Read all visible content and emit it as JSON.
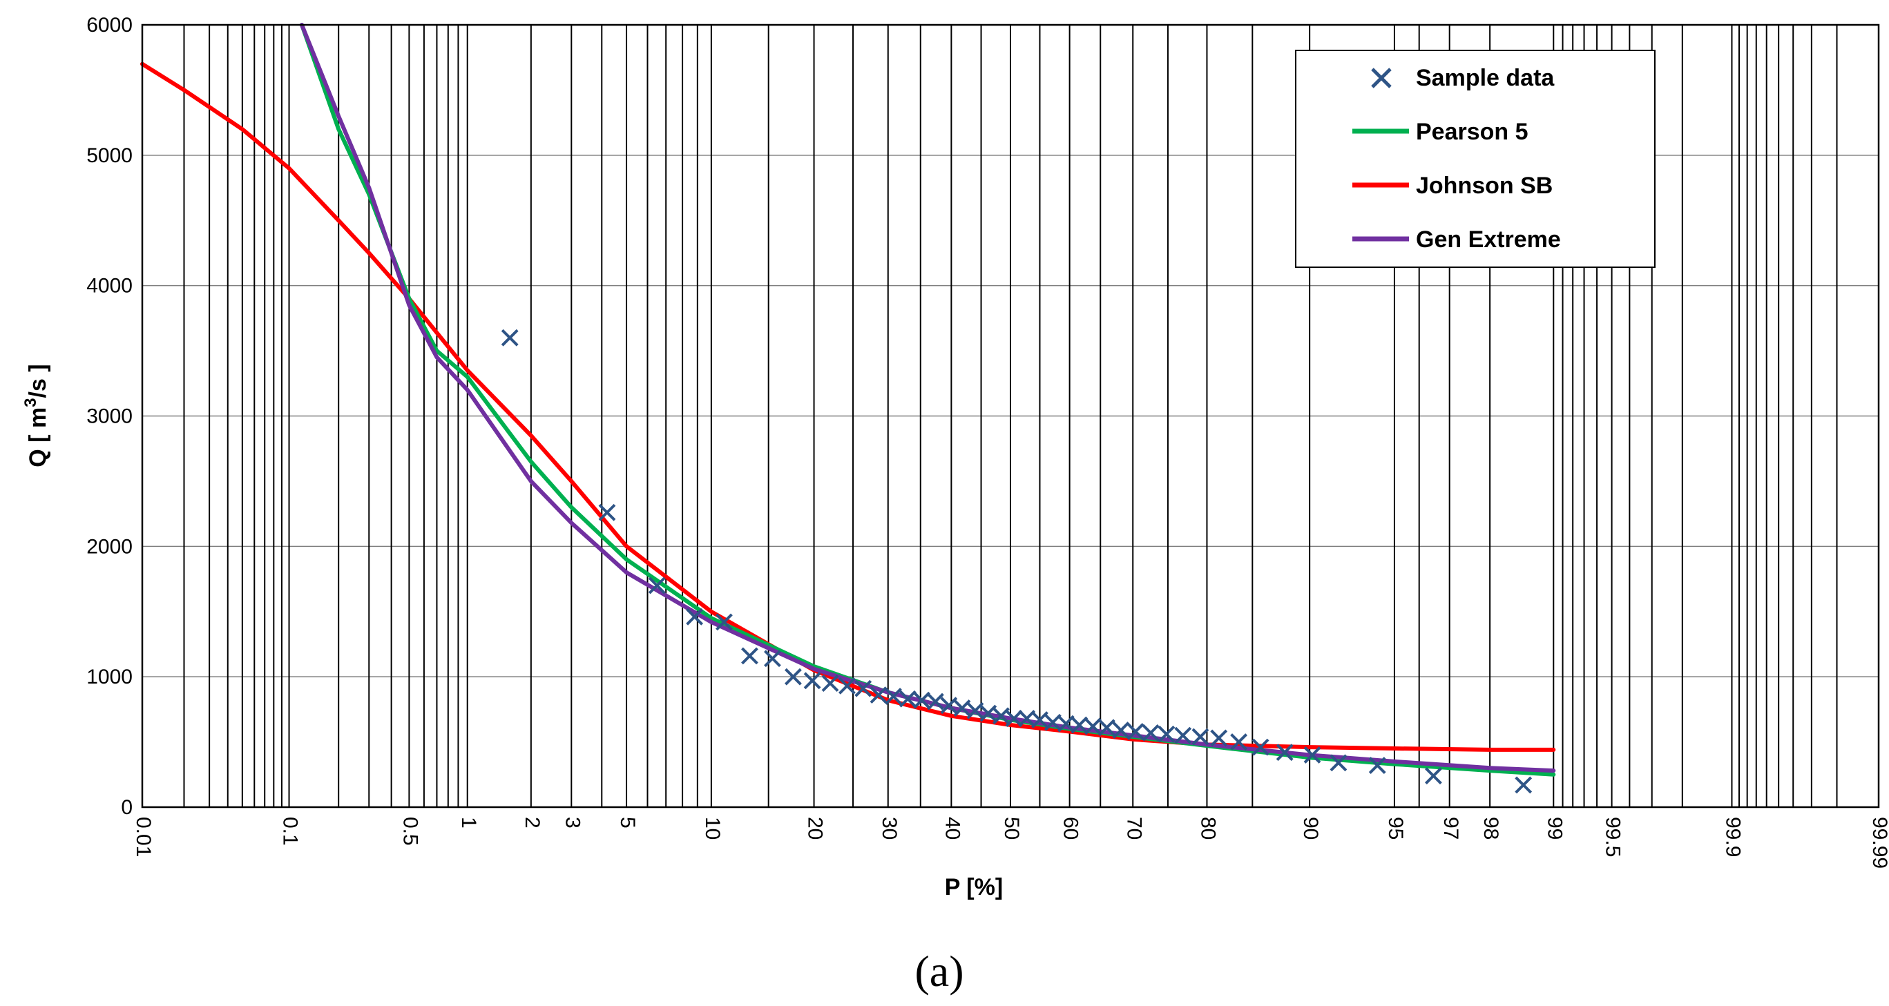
{
  "chart_data": {
    "type": "line",
    "caption": "(a)",
    "xlabel": "P [%]",
    "ylabel_main": "Q [ m",
    "ylabel_sup": "3",
    "ylabel_end": "/s ]",
    "x_scale": "normal-probability",
    "xlim": [
      0.01,
      99.99
    ],
    "ylim": [
      0,
      6000
    ],
    "grid": true,
    "legend_position": "top-right",
    "y_ticks": [
      0,
      1000,
      2000,
      3000,
      4000,
      5000,
      6000
    ],
    "x_tick_labels": [
      "0.01",
      "0.1",
      "0.5",
      "1",
      "2",
      "3",
      "5",
      "10",
      "20",
      "30",
      "40",
      "50",
      "60",
      "70",
      "80",
      "90",
      "95",
      "97",
      "98",
      "99",
      "99.5",
      "99.9",
      "99.99"
    ],
    "x_gridlines": [
      0.02,
      0.03,
      0.04,
      0.05,
      0.06,
      0.07,
      0.08,
      0.09,
      0.1,
      0.2,
      0.3,
      0.4,
      0.5,
      0.6,
      0.7,
      0.8,
      0.9,
      1,
      2,
      3,
      4,
      5,
      6,
      7,
      8,
      9,
      10,
      15,
      20,
      25,
      30,
      35,
      40,
      45,
      50,
      55,
      60,
      65,
      70,
      75,
      80,
      85,
      90,
      95,
      96,
      97,
      98,
      99,
      99.1,
      99.2,
      99.3,
      99.4,
      99.5,
      99.6,
      99.7,
      99.8,
      99.9,
      99.91,
      99.92,
      99.93,
      99.94,
      99.95,
      99.96,
      99.97,
      99.98,
      99.99
    ],
    "series": [
      {
        "name": "Sample data",
        "kind": "scatter",
        "color": "#2e5486",
        "points": [
          [
            1.6,
            3600
          ],
          [
            4.2,
            2260
          ],
          [
            6.5,
            1700
          ],
          [
            8.8,
            1460
          ],
          [
            11.0,
            1420
          ],
          [
            13.2,
            1160
          ],
          [
            15.4,
            1140
          ],
          [
            17.6,
            1000
          ],
          [
            19.8,
            970
          ],
          [
            22.0,
            950
          ],
          [
            24.2,
            930
          ],
          [
            26.4,
            910
          ],
          [
            28.6,
            860
          ],
          [
            30.8,
            850
          ],
          [
            33.0,
            830
          ],
          [
            35.2,
            820
          ],
          [
            37.4,
            810
          ],
          [
            39.6,
            780
          ],
          [
            41.8,
            760
          ],
          [
            44.0,
            740
          ],
          [
            46.2,
            720
          ],
          [
            48.4,
            700
          ],
          [
            50.6,
            680
          ],
          [
            52.8,
            680
          ],
          [
            55.0,
            670
          ],
          [
            57.2,
            650
          ],
          [
            59.4,
            640
          ],
          [
            61.6,
            630
          ],
          [
            63.8,
            620
          ],
          [
            66.0,
            610
          ],
          [
            68.2,
            590
          ],
          [
            70.4,
            580
          ],
          [
            72.6,
            570
          ],
          [
            74.8,
            560
          ],
          [
            77.0,
            550
          ],
          [
            79.2,
            540
          ],
          [
            81.4,
            530
          ],
          [
            83.6,
            500
          ],
          [
            85.8,
            460
          ],
          [
            88.0,
            420
          ],
          [
            90.2,
            400
          ],
          [
            92.0,
            340
          ],
          [
            94.2,
            320
          ],
          [
            96.5,
            240
          ],
          [
            98.6,
            170
          ]
        ]
      },
      {
        "name": "Pearson 5",
        "kind": "line",
        "color": "#00b050",
        "points": [
          [
            0.12,
            6000
          ],
          [
            0.2,
            5200
          ],
          [
            0.3,
            4700
          ],
          [
            0.5,
            3900
          ],
          [
            0.7,
            3500
          ],
          [
            1,
            3300
          ],
          [
            2,
            2650
          ],
          [
            3,
            2300
          ],
          [
            5,
            1900
          ],
          [
            10,
            1450
          ],
          [
            20,
            1080
          ],
          [
            30,
            880
          ],
          [
            40,
            760
          ],
          [
            50,
            670
          ],
          [
            60,
            600
          ],
          [
            70,
            540
          ],
          [
            80,
            470
          ],
          [
            90,
            380
          ],
          [
            95,
            330
          ],
          [
            98,
            280
          ],
          [
            99,
            250
          ]
        ]
      },
      {
        "name": "Johnson SB",
        "kind": "line",
        "color": "#ff0000",
        "points": [
          [
            0.01,
            5700
          ],
          [
            0.02,
            5500
          ],
          [
            0.05,
            5200
          ],
          [
            0.1,
            4900
          ],
          [
            0.2,
            4500
          ],
          [
            0.3,
            4250
          ],
          [
            0.5,
            3900
          ],
          [
            1,
            3350
          ],
          [
            2,
            2850
          ],
          [
            3,
            2500
          ],
          [
            5,
            2000
          ],
          [
            10,
            1500
          ],
          [
            20,
            1050
          ],
          [
            30,
            820
          ],
          [
            40,
            700
          ],
          [
            50,
            630
          ],
          [
            60,
            580
          ],
          [
            70,
            520
          ],
          [
            80,
            480
          ],
          [
            90,
            460
          ],
          [
            95,
            450
          ],
          [
            98,
            440
          ],
          [
            99,
            440
          ]
        ]
      },
      {
        "name": "Gen Extreme",
        "kind": "line",
        "color": "#7030a0",
        "points": [
          [
            0.12,
            6000
          ],
          [
            0.2,
            5300
          ],
          [
            0.3,
            4750
          ],
          [
            0.5,
            3850
          ],
          [
            0.7,
            3450
          ],
          [
            1,
            3200
          ],
          [
            2,
            2500
          ],
          [
            3,
            2180
          ],
          [
            5,
            1800
          ],
          [
            10,
            1420
          ],
          [
            20,
            1060
          ],
          [
            30,
            880
          ],
          [
            40,
            760
          ],
          [
            50,
            680
          ],
          [
            60,
            610
          ],
          [
            70,
            550
          ],
          [
            80,
            480
          ],
          [
            90,
            400
          ],
          [
            95,
            350
          ],
          [
            98,
            300
          ],
          [
            99,
            280
          ]
        ]
      }
    ]
  }
}
